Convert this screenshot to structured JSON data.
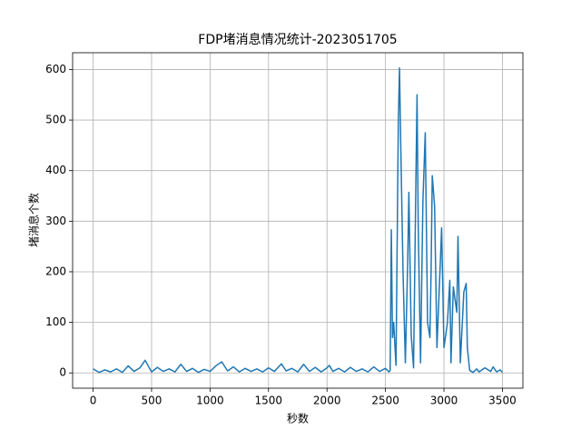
{
  "chart_data": {
    "type": "line",
    "title": "FDP堵消息情况统计-2023051705",
    "xlabel": "秒数",
    "ylabel": "堵消息个数",
    "color": "#1f77b4",
    "grid": true,
    "xlim": [
      -175,
      3675
    ],
    "ylim": [
      -30.15,
      633.15
    ],
    "xticks": [
      0,
      500,
      1000,
      1500,
      2000,
      2500,
      3000,
      3500
    ],
    "yticks": [
      0,
      100,
      200,
      300,
      400,
      500,
      600
    ],
    "x": [
      0,
      50,
      100,
      150,
      200,
      250,
      300,
      350,
      400,
      445,
      500,
      550,
      600,
      650,
      700,
      750,
      800,
      850,
      900,
      950,
      1000,
      1050,
      1100,
      1150,
      1200,
      1250,
      1300,
      1350,
      1400,
      1450,
      1500,
      1550,
      1610,
      1650,
      1700,
      1750,
      1800,
      1850,
      1900,
      1950,
      2000,
      2020,
      2050,
      2100,
      2150,
      2200,
      2250,
      2300,
      2350,
      2400,
      2450,
      2500,
      2530,
      2540,
      2550,
      2560,
      2570,
      2590,
      2610,
      2620,
      2630,
      2650,
      2670,
      2690,
      2700,
      2720,
      2740,
      2760,
      2770,
      2780,
      2800,
      2820,
      2840,
      2860,
      2880,
      2890,
      2900,
      2920,
      2940,
      2970,
      2980,
      3000,
      3030,
      3050,
      3060,
      3080,
      3110,
      3120,
      3140,
      3170,
      3190,
      3200,
      3220,
      3250,
      3280,
      3300,
      3350,
      3400,
      3420,
      3450,
      3480,
      3500
    ],
    "values": [
      8,
      1,
      6,
      2,
      8,
      1,
      14,
      3,
      10,
      25,
      2,
      11,
      3,
      8,
      2,
      17,
      3,
      9,
      1,
      7,
      3,
      14,
      22,
      4,
      12,
      2,
      9,
      3,
      8,
      2,
      10,
      3,
      18,
      4,
      9,
      2,
      17,
      3,
      11,
      2,
      10,
      15,
      3,
      9,
      2,
      11,
      3,
      8,
      2,
      12,
      3,
      9,
      2,
      5,
      283,
      70,
      100,
      15,
      500,
      603,
      460,
      200,
      20,
      220,
      357,
      75,
      10,
      380,
      550,
      290,
      20,
      340,
      475,
      100,
      70,
      200,
      390,
      330,
      50,
      225,
      287,
      50,
      100,
      183,
      20,
      170,
      120,
      270,
      20,
      160,
      177,
      50,
      5,
      1,
      8,
      2,
      10,
      3,
      12,
      2,
      6,
      1
    ]
  }
}
